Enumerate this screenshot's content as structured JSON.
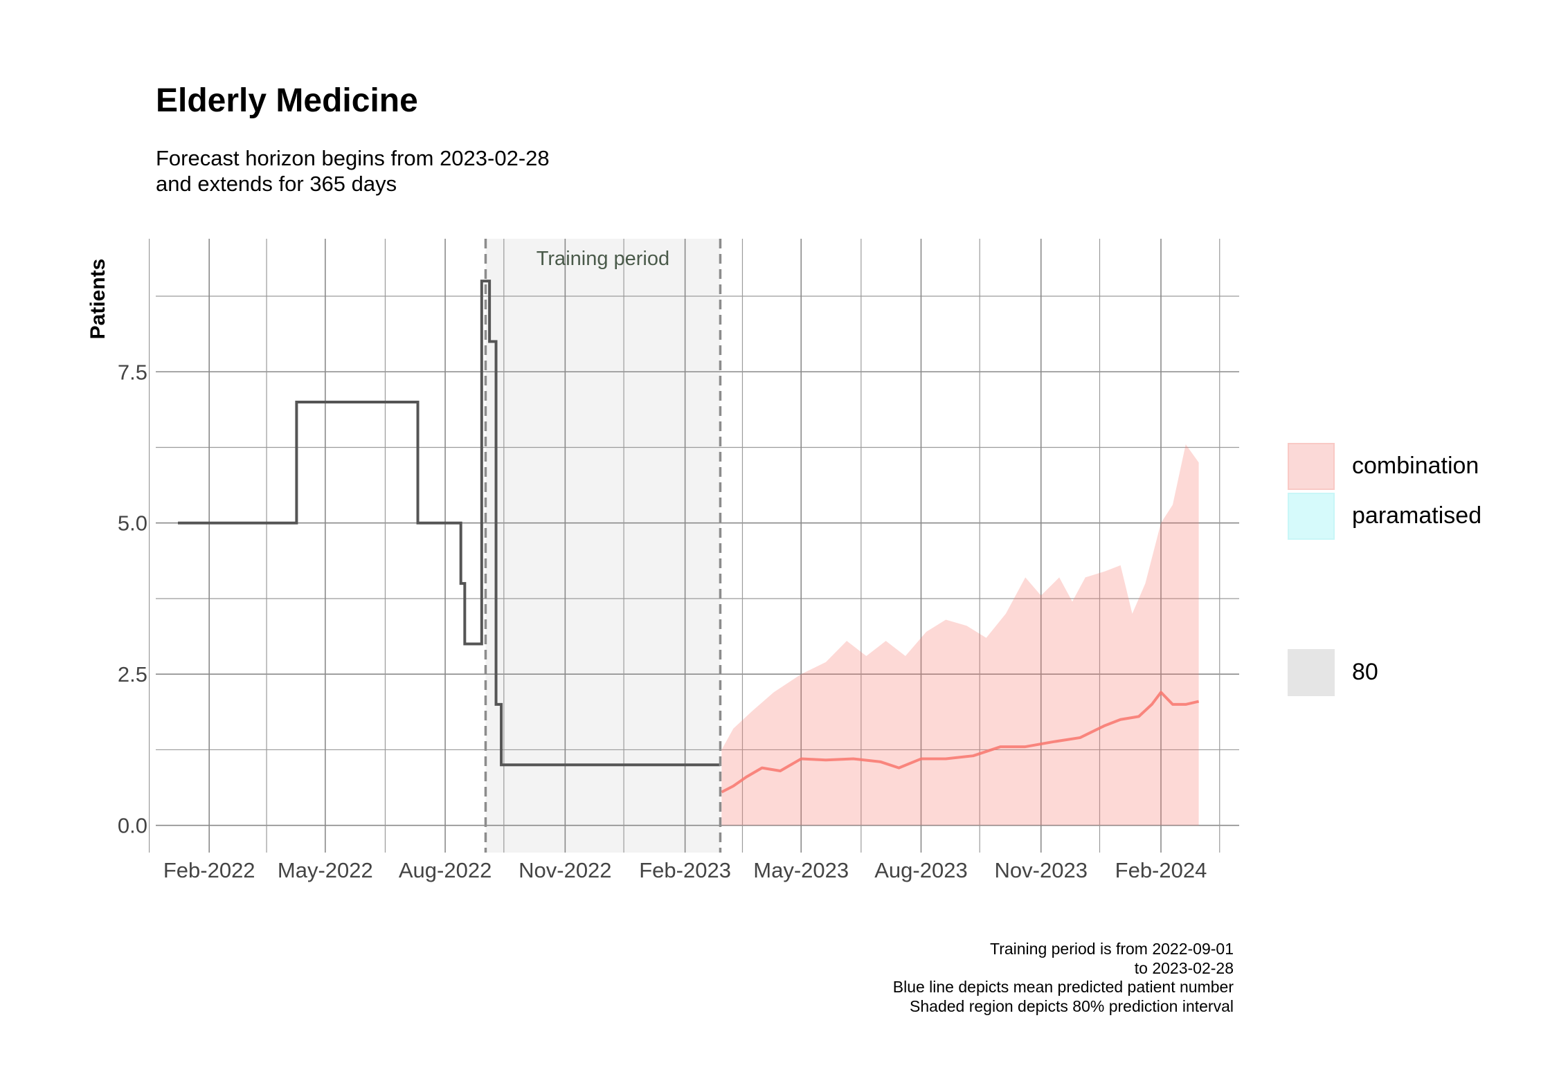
{
  "chart_data": {
    "type": "line",
    "title": "Elderly Medicine",
    "subtitle": [
      "Forecast horizon begins from 2023-02-28",
      "and extends for 365 days"
    ],
    "xlabel": "",
    "ylabel": "Patients",
    "x_type": "date",
    "xlim": [
      "2021-12-22",
      "2024-04-01"
    ],
    "ylim": [
      -0.45,
      9.7
    ],
    "x_ticks": [
      {
        "date": "2022-02-01",
        "label": "Feb-2022"
      },
      {
        "date": "2022-05-01",
        "label": "May-2022"
      },
      {
        "date": "2022-08-01",
        "label": "Aug-2022"
      },
      {
        "date": "2022-11-01",
        "label": "Nov-2022"
      },
      {
        "date": "2023-02-01",
        "label": "Feb-2023"
      },
      {
        "date": "2023-05-01",
        "label": "May-2023"
      },
      {
        "date": "2023-08-01",
        "label": "Aug-2023"
      },
      {
        "date": "2023-11-01",
        "label": "Nov-2023"
      },
      {
        "date": "2024-02-01",
        "label": "Feb-2024"
      }
    ],
    "x_minor_ticks": [
      "2021-12-17",
      "2022-03-17",
      "2022-06-16",
      "2022-09-15",
      "2022-12-16",
      "2023-03-17",
      "2023-06-16",
      "2023-09-15",
      "2023-12-16",
      "2024-03-17"
    ],
    "y_ticks": [
      0.0,
      2.5,
      5.0,
      7.5
    ],
    "y_tick_labels": [
      "0.0",
      "2.5",
      "5.0",
      "7.5"
    ],
    "y_minor_ticks": [
      1.25,
      3.75,
      6.25,
      8.75
    ],
    "grid": true,
    "training_period": {
      "start": "2022-09-01",
      "end": "2023-02-28",
      "label": "Training period",
      "fill": "#f3f3f3"
    },
    "observed": {
      "color": "#555555",
      "step": true,
      "points": [
        [
          "2022-01-08",
          5
        ],
        [
          "2022-04-09",
          7
        ],
        [
          "2022-07-11",
          5
        ],
        [
          "2022-08-13",
          4
        ],
        [
          "2022-08-16",
          3
        ],
        [
          "2022-08-29",
          9
        ],
        [
          "2022-09-04",
          8
        ],
        [
          "2022-09-09",
          2
        ],
        [
          "2022-09-13",
          1
        ],
        [
          "2023-02-28",
          1
        ]
      ]
    },
    "series": [
      {
        "name": "combination",
        "color": "#f8766d",
        "fill": "#f8766d",
        "mean": [
          [
            "2023-03-01",
            0.55
          ],
          [
            "2023-03-10",
            0.65
          ],
          [
            "2023-03-20",
            0.8
          ],
          [
            "2023-04-01",
            0.95
          ],
          [
            "2023-04-15",
            0.9
          ],
          [
            "2023-05-01",
            1.1
          ],
          [
            "2023-05-20",
            1.08
          ],
          [
            "2023-06-10",
            1.1
          ],
          [
            "2023-07-01",
            1.05
          ],
          [
            "2023-07-15",
            0.95
          ],
          [
            "2023-08-01",
            1.1
          ],
          [
            "2023-08-20",
            1.1
          ],
          [
            "2023-09-10",
            1.15
          ],
          [
            "2023-10-01",
            1.3
          ],
          [
            "2023-10-20",
            1.3
          ],
          [
            "2023-11-10",
            1.38
          ],
          [
            "2023-12-01",
            1.45
          ],
          [
            "2023-12-20",
            1.65
          ],
          [
            "2024-01-01",
            1.75
          ],
          [
            "2024-01-15",
            1.8
          ],
          [
            "2024-01-25",
            2.0
          ],
          [
            "2024-02-01",
            2.2
          ],
          [
            "2024-02-10",
            2.0
          ],
          [
            "2024-02-20",
            2.0
          ],
          [
            "2024-03-01",
            2.05
          ]
        ],
        "upper": [
          [
            "2023-03-01",
            1.25
          ],
          [
            "2023-03-10",
            1.6
          ],
          [
            "2023-03-25",
            1.9
          ],
          [
            "2023-04-10",
            2.2
          ],
          [
            "2023-05-01",
            2.5
          ],
          [
            "2023-05-20",
            2.7
          ],
          [
            "2023-06-05",
            3.05
          ],
          [
            "2023-06-20",
            2.8
          ],
          [
            "2023-07-05",
            3.05
          ],
          [
            "2023-07-20",
            2.8
          ],
          [
            "2023-08-05",
            3.2
          ],
          [
            "2023-08-20",
            3.4
          ],
          [
            "2023-09-05",
            3.3
          ],
          [
            "2023-09-20",
            3.1
          ],
          [
            "2023-10-05",
            3.5
          ],
          [
            "2023-10-20",
            4.1
          ],
          [
            "2023-11-01",
            3.8
          ],
          [
            "2023-11-15",
            4.1
          ],
          [
            "2023-11-25",
            3.7
          ],
          [
            "2023-12-05",
            4.1
          ],
          [
            "2023-12-20",
            4.2
          ],
          [
            "2024-01-01",
            4.3
          ],
          [
            "2024-01-10",
            3.5
          ],
          [
            "2024-01-20",
            4.0
          ],
          [
            "2024-02-01",
            5.0
          ],
          [
            "2024-02-10",
            5.3
          ],
          [
            "2024-02-20",
            6.3
          ],
          [
            "2024-03-01",
            6.0
          ]
        ],
        "lower": [
          [
            "2023-03-01",
            0
          ],
          [
            "2024-03-01",
            0
          ]
        ]
      },
      {
        "name": "paramatised",
        "color": "#00bfc4",
        "fill": "#d6fafb"
      }
    ],
    "legend": {
      "placement": "right",
      "entries": [
        {
          "label": "combination",
          "color": "#fbd9d7"
        },
        {
          "label": "paramatised",
          "color": "#d6fafb"
        }
      ],
      "interval_entries": [
        {
          "label": "80",
          "color": "#e5e5e5"
        }
      ]
    },
    "caption": [
      "Training period is from 2022-09-01",
      "to 2023-02-28",
      "Blue line depicts mean predicted patient number",
      "Shaded region depicts 80% prediction interval"
    ]
  }
}
